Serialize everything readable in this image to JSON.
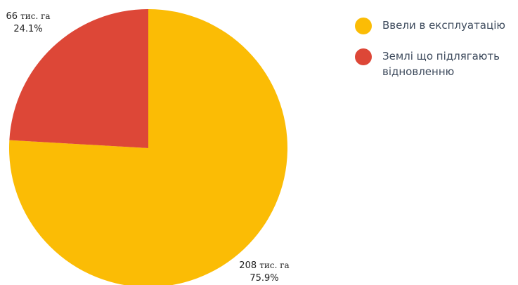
{
  "chart_data": {
    "type": "pie",
    "title": "",
    "unit": "тис. га",
    "slices": [
      {
        "label": "Ввели в експлуатацію",
        "value": 208,
        "percent": "75.9%",
        "color": "#FBBC05"
      },
      {
        "label": "Землі що підлягають відновленню",
        "value": 66,
        "percent": "24.1%",
        "color": "#DD4737"
      }
    ],
    "legend_position": "right"
  }
}
